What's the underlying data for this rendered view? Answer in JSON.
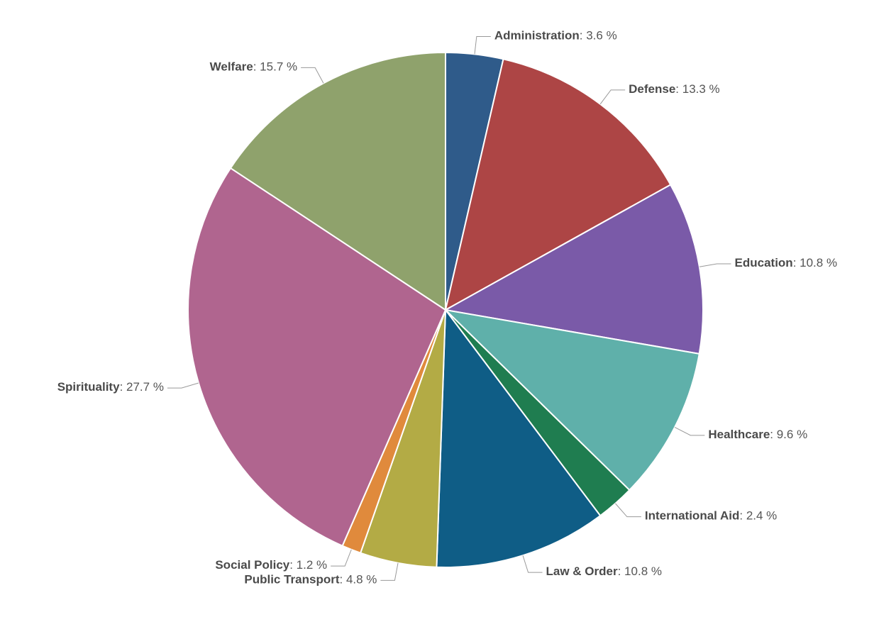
{
  "chart_data": {
    "type": "pie",
    "categories": [
      "Administration",
      "Defense",
      "Education",
      "Healthcare",
      "International Aid",
      "Law & Order",
      "Public Transport",
      "Social Policy",
      "Spirituality",
      "Welfare"
    ],
    "values": [
      3.6,
      13.3,
      10.8,
      9.6,
      2.4,
      10.8,
      4.8,
      1.2,
      27.7,
      15.7
    ],
    "value_labels": [
      ": 3.6 %",
      ": 13.3 %",
      ": 10.8 %",
      ": 9.6 %",
      ": 2.4 %",
      ": 10.8 %",
      ": 4.8 %",
      ": 1.2 %",
      ": 27.7 %",
      ": 15.7 %"
    ],
    "colors": [
      "#2f5b8a",
      "#ad4545",
      "#7a5aa8",
      "#5fb0aa",
      "#1f7d50",
      "#0f5d86",
      "#b3ab45",
      "#e08a3c",
      "#b0658f",
      "#8fa26c"
    ]
  }
}
